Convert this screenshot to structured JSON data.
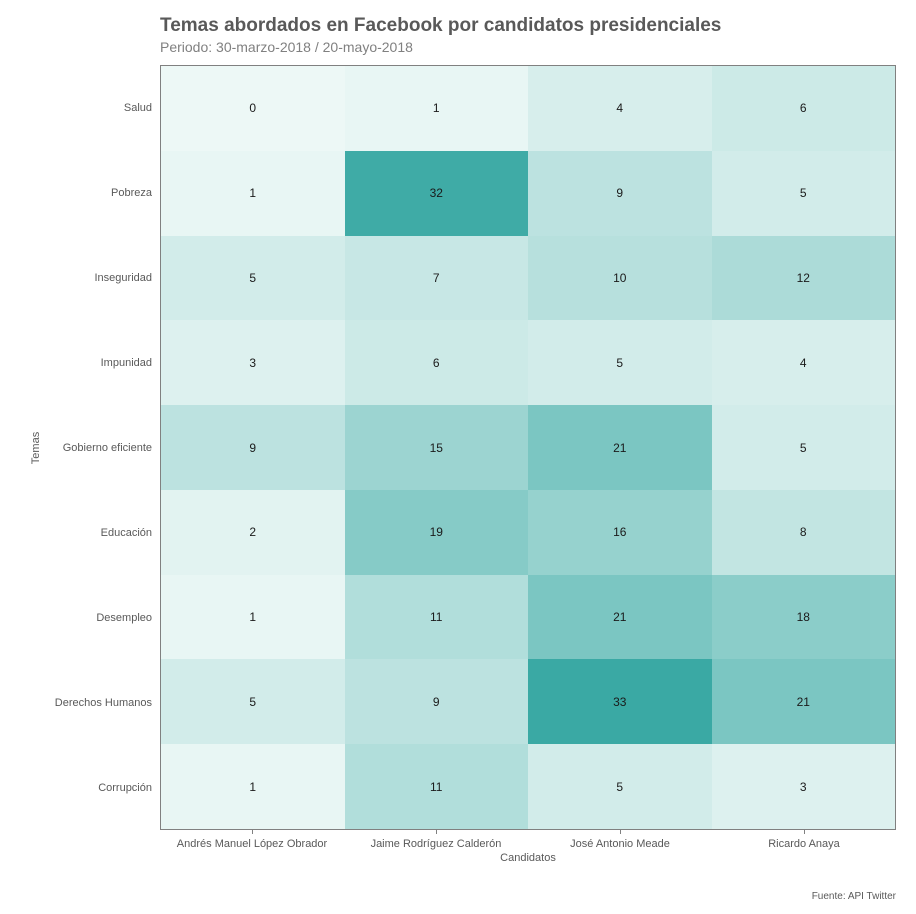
{
  "chart": {
    "type": "heatmap",
    "title": "Temas abordados en Facebook por candidatos presidenciales",
    "subtitle": "Periodo: 30-marzo-2018 / 20-mayo-2018",
    "x_label": "Candidatos",
    "y_label": "Temas",
    "x_categories": [
      "Andrés Manuel López Obrador",
      "Jaime Rodríguez Calderón",
      "José Antonio Meade",
      "Ricardo Anaya"
    ],
    "y_categories": [
      "Salud",
      "Pobreza",
      "Inseguridad",
      "Impunidad",
      "Gobierno eficiente",
      "Educación",
      "Desempleo",
      "Derechos Humanos",
      "Corrupción"
    ],
    "values": [
      [
        0,
        1,
        4,
        6
      ],
      [
        1,
        32,
        9,
        5
      ],
      [
        5,
        7,
        10,
        12
      ],
      [
        3,
        6,
        5,
        4
      ],
      [
        9,
        15,
        21,
        5
      ],
      [
        2,
        19,
        16,
        8
      ],
      [
        1,
        11,
        21,
        18
      ],
      [
        5,
        9,
        33,
        21
      ],
      [
        1,
        11,
        5,
        3
      ]
    ],
    "color_min": "#edf8f6",
    "color_max": "#3aa9a4",
    "value_min": 0,
    "value_max": 33,
    "text_color": "#1a1a1a",
    "tick_fontsize": 11,
    "value_fontsize": 12,
    "title_fontsize": 19,
    "subtitle_fontsize": 14,
    "title_color": "#595959",
    "subtitle_color": "#808080",
    "tick_color": "#595959",
    "border_color": "#808080",
    "background_color": "#ffffff",
    "footer": "Fuente: API Twitter"
  }
}
